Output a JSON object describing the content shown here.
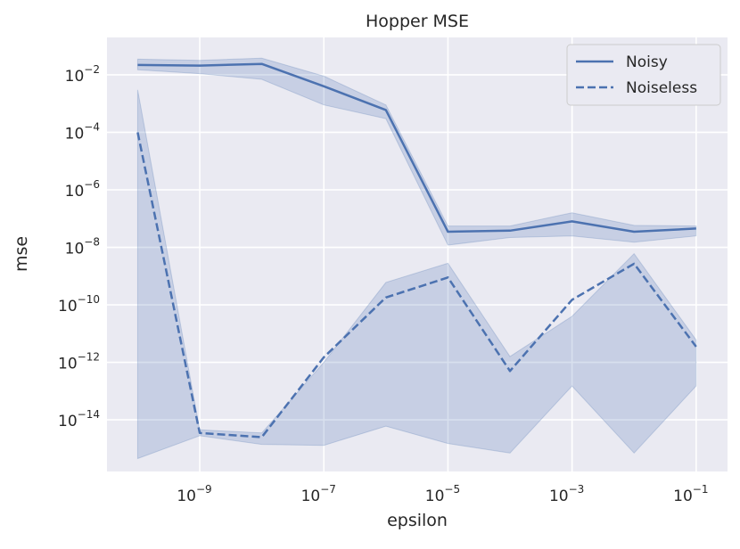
{
  "chart_data": {
    "type": "line",
    "title": "Hopper MSE",
    "xlabel": "epsilon",
    "ylabel": "mse",
    "xscale": "log",
    "yscale": "log",
    "xlim": [
      3.2e-11,
      0.32
    ],
    "ylim": [
      1.6e-16,
      0.2
    ],
    "grid": true,
    "legend": "top-right",
    "x_ticks": [
      {
        "base": "10",
        "exp": "−9",
        "value": 1e-09
      },
      {
        "base": "10",
        "exp": "−7",
        "value": 1e-07
      },
      {
        "base": "10",
        "exp": "−5",
        "value": 1e-05
      },
      {
        "base": "10",
        "exp": "−3",
        "value": 0.001
      },
      {
        "base": "10",
        "exp": "−1",
        "value": 0.1
      }
    ],
    "y_ticks": [
      {
        "base": "10",
        "exp": "−2",
        "value": 0.01
      },
      {
        "base": "10",
        "exp": "−4",
        "value": 0.0001
      },
      {
        "base": "10",
        "exp": "−6",
        "value": 1e-06
      },
      {
        "base": "10",
        "exp": "−8",
        "value": 1e-08
      },
      {
        "base": "10",
        "exp": "−10",
        "value": 1e-10
      },
      {
        "base": "10",
        "exp": "−12",
        "value": 1e-12
      },
      {
        "base": "10",
        "exp": "−14",
        "value": 1e-14
      }
    ],
    "x": [
      1e-10,
      1e-09,
      1e-08,
      1e-07,
      1e-06,
      1e-05,
      0.0001,
      0.001,
      0.01,
      0.1
    ],
    "series": [
      {
        "name": "Noisy",
        "style": "solid",
        "color": "#4c72b0",
        "values": [
          0.022,
          0.021,
          0.024,
          0.004,
          0.0006,
          3.5e-08,
          3.8e-08,
          8e-08,
          3.5e-08,
          4.5e-08
        ],
        "lower": [
          0.015,
          0.011,
          0.007,
          0.0009,
          0.0003,
          1.2e-08,
          2.2e-08,
          2.5e-08,
          1.5e-08,
          2.5e-08
        ],
        "upper": [
          0.035,
          0.032,
          0.038,
          0.009,
          0.0009,
          5.5e-08,
          5.5e-08,
          1.6e-07,
          5.8e-08,
          5.5e-08
        ]
      },
      {
        "name": "Noiseless",
        "style": "dashed",
        "color": "#4c72b0",
        "values": [
          0.0001,
          3.5e-15,
          2.5e-15,
          1.5e-12,
          1.8e-10,
          9e-10,
          5e-13,
          1.5e-10,
          2.7e-09,
          3.5e-12
        ],
        "lower": [
          4.5e-16,
          2.8e-15,
          1.4e-15,
          1.3e-15,
          6e-15,
          1.5e-15,
          7e-16,
          1.5e-13,
          7e-16,
          1.5e-13
        ],
        "upper": [
          0.003,
          4.5e-15,
          3.5e-15,
          1e-12,
          6e-10,
          2.8e-09,
          1.6e-12,
          4e-11,
          6e-09,
          6e-12
        ]
      }
    ]
  }
}
